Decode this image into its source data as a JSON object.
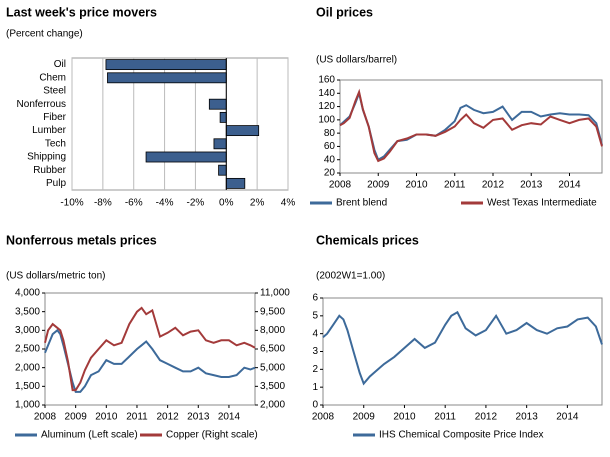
{
  "chart_data": [
    {
      "type": "hbar",
      "title": "Last week's price movers",
      "subtitle": "(Percent change)",
      "categories": [
        "Oil",
        "Chem",
        "Steel",
        "Nonferrous",
        "Fiber",
        "Lumber",
        "Tech",
        "Shipping",
        "Rubber",
        "Pulp"
      ],
      "values": [
        -7.8,
        -7.7,
        0,
        -1.1,
        -0.4,
        2.1,
        -0.8,
        -5.2,
        -0.5,
        1.2
      ],
      "color": "#3c5f8e",
      "xlim": [
        -10,
        4
      ],
      "xticks": [
        {
          "value": -10,
          "label": "-10%"
        },
        {
          "value": -8,
          "label": "-8%"
        },
        {
          "value": -6,
          "label": "-6%"
        },
        {
          "value": -4,
          "label": "-4%"
        },
        {
          "value": -2,
          "label": "-2%"
        },
        {
          "value": 0,
          "label": "0%"
        },
        {
          "value": 2,
          "label": "2%"
        },
        {
          "value": 4,
          "label": "4%"
        }
      ],
      "grid": true
    },
    {
      "type": "line",
      "title": "Oil prices",
      "subtitle": "(US dollars/barrel)",
      "x": [
        2008.0,
        2008.1,
        2008.25,
        2008.4,
        2008.5,
        2008.6,
        2008.75,
        2008.9,
        2009.0,
        2009.15,
        2009.3,
        2009.5,
        2009.75,
        2010.0,
        2010.25,
        2010.5,
        2010.75,
        2011.0,
        2011.15,
        2011.3,
        2011.5,
        2011.75,
        2012.0,
        2012.25,
        2012.5,
        2012.75,
        2013.0,
        2013.25,
        2013.5,
        2013.75,
        2014.0,
        2014.25,
        2014.5,
        2014.7,
        2014.85
      ],
      "xlim": [
        2008,
        2014.85
      ],
      "xticks": [
        2008,
        2009,
        2010,
        2011,
        2012,
        2013,
        2014
      ],
      "ylim": [
        20,
        160
      ],
      "yticks": [
        20,
        40,
        60,
        80,
        100,
        120,
        140,
        160
      ],
      "series": [
        {
          "name": "Brent blend",
          "color": "#3d6a9a",
          "values": [
            92,
            97,
            105,
            125,
            140,
            115,
            90,
            55,
            40,
            45,
            55,
            68,
            70,
            78,
            78,
            76,
            85,
            98,
            118,
            122,
            115,
            110,
            112,
            120,
            100,
            112,
            112,
            105,
            108,
            110,
            108,
            108,
            107,
            95,
            62
          ]
        },
        {
          "name": "West Texas Intermediate",
          "color": "#a33a3a",
          "values": [
            92,
            95,
            103,
            128,
            142,
            116,
            90,
            50,
            38,
            42,
            52,
            68,
            72,
            78,
            78,
            76,
            82,
            90,
            100,
            108,
            95,
            88,
            100,
            102,
            85,
            92,
            95,
            93,
            105,
            100,
            95,
            100,
            102,
            90,
            60
          ]
        }
      ]
    },
    {
      "type": "line",
      "title": "Nonferrous metals prices",
      "subtitle": "(US dollars/metric ton)",
      "x": [
        2008.0,
        2008.1,
        2008.25,
        2008.4,
        2008.5,
        2008.6,
        2008.75,
        2008.9,
        2009.0,
        2009.15,
        2009.3,
        2009.5,
        2009.75,
        2010.0,
        2010.25,
        2010.5,
        2010.75,
        2011.0,
        2011.15,
        2011.3,
        2011.5,
        2011.75,
        2012.0,
        2012.25,
        2012.5,
        2012.75,
        2013.0,
        2013.25,
        2013.5,
        2013.75,
        2014.0,
        2014.25,
        2014.5,
        2014.7,
        2014.85
      ],
      "xlim": [
        2008,
        2014.85
      ],
      "xticks": [
        2008,
        2009,
        2010,
        2011,
        2012,
        2013,
        2014
      ],
      "ylim": [
        1000,
        4000
      ],
      "yticks": [
        {
          "value": 1000,
          "label": "1,000"
        },
        {
          "value": 1500,
          "label": "1,500"
        },
        {
          "value": 2000,
          "label": "2,000"
        },
        {
          "value": 2500,
          "label": "2,500"
        },
        {
          "value": 3000,
          "label": "3,000"
        },
        {
          "value": 3500,
          "label": "3,500"
        },
        {
          "value": 4000,
          "label": "4,000"
        }
      ],
      "y2lim": [
        2000,
        11000
      ],
      "y2ticks": [
        {
          "value": 2000,
          "label": "2,000"
        },
        {
          "value": 3500,
          "label": "3,500"
        },
        {
          "value": 5000,
          "label": "5,000"
        },
        {
          "value": 6500,
          "label": "6,500"
        },
        {
          "value": 8000,
          "label": "8,000"
        },
        {
          "value": 9500,
          "label": "9,500"
        },
        {
          "value": 11000,
          "label": "11,000"
        }
      ],
      "series": [
        {
          "name": "Aluminum (Left scale)",
          "color": "#3d6a9a",
          "values": [
            2400,
            2600,
            2900,
            3000,
            2900,
            2600,
            2100,
            1600,
            1350,
            1350,
            1500,
            1800,
            1900,
            2200,
            2100,
            2100,
            2300,
            2500,
            2600,
            2700,
            2500,
            2200,
            2100,
            2000,
            1900,
            1900,
            2000,
            1850,
            1800,
            1750,
            1750,
            1800,
            2000,
            1950,
            2000
          ]
        },
        {
          "name": "Copper (Right scale)",
          "color": "#a33a3a",
          "axis": "y2",
          "values": [
            7000,
            8000,
            8500,
            8200,
            8000,
            7200,
            5500,
            3200,
            3200,
            3800,
            4800,
            5800,
            6500,
            7200,
            6800,
            7000,
            8500,
            9500,
            9800,
            9300,
            9600,
            7500,
            7800,
            8200,
            7600,
            7900,
            8000,
            7200,
            7000,
            7200,
            7200,
            6800,
            7000,
            6800,
            6600
          ]
        }
      ]
    },
    {
      "type": "line",
      "title": "Chemicals prices",
      "subtitle": "(2002W1=1.00)",
      "x": [
        2008.0,
        2008.1,
        2008.25,
        2008.4,
        2008.5,
        2008.6,
        2008.75,
        2008.9,
        2009.0,
        2009.15,
        2009.3,
        2009.5,
        2009.75,
        2010.0,
        2010.25,
        2010.5,
        2010.75,
        2011.0,
        2011.15,
        2011.3,
        2011.5,
        2011.75,
        2012.0,
        2012.25,
        2012.5,
        2012.75,
        2013.0,
        2013.25,
        2013.5,
        2013.75,
        2014.0,
        2014.25,
        2014.5,
        2014.7,
        2014.85
      ],
      "xlim": [
        2008,
        2014.85
      ],
      "xticks": [
        2008,
        2009,
        2010,
        2011,
        2012,
        2013,
        2014
      ],
      "ylim": [
        0,
        6
      ],
      "yticks": [
        0,
        1,
        2,
        3,
        4,
        5,
        6
      ],
      "series": [
        {
          "name": "IHS Chemical Composite Price Index",
          "color": "#3d6a9a",
          "values": [
            3.8,
            4.0,
            4.5,
            5.0,
            4.8,
            4.2,
            3.0,
            1.8,
            1.2,
            1.6,
            1.9,
            2.3,
            2.7,
            3.2,
            3.7,
            3.2,
            3.5,
            4.5,
            5.0,
            5.2,
            4.3,
            3.9,
            4.2,
            5.0,
            4.0,
            4.2,
            4.6,
            4.2,
            4.0,
            4.3,
            4.4,
            4.8,
            4.9,
            4.4,
            3.4
          ]
        }
      ]
    }
  ]
}
